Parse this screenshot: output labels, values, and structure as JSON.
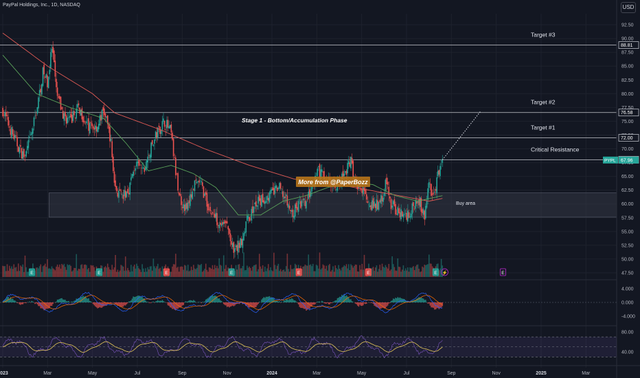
{
  "header": {
    "symbol_title": "PayPal Holdings, Inc., 1D, NASDAQ",
    "currency": "USD"
  },
  "colors": {
    "bg": "#131722",
    "up": "#26a69a",
    "down": "#ef5350",
    "ma_red": "#e05a55",
    "ma_green": "#5aa25a",
    "grid": "#1e222d",
    "text": "#b2b5be",
    "white": "#ffffff"
  },
  "chart_data": {
    "type": "candlestick",
    "price_axis": {
      "ticks": [
        "92.50",
        "90.00",
        "87.50",
        "85.00",
        "82.50",
        "80.00",
        "77.50",
        "75.00",
        "72.50",
        "70.00",
        "67.50",
        "65.00",
        "62.50",
        "60.00",
        "57.50",
        "55.00",
        "52.50",
        "50.00",
        "47.50"
      ],
      "range": [
        46.5,
        94.5
      ]
    },
    "time_axis": {
      "ticks": [
        "2023",
        "Mar",
        "May",
        "Jul",
        "Sep",
        "Nov",
        "2024",
        "Mar",
        "May",
        "Jul",
        "Sep",
        "Nov",
        "2025",
        "Mar"
      ],
      "bold": [
        "2023",
        "2024",
        "2025"
      ],
      "range_months": [
        0,
        27
      ]
    },
    "price_tags": [
      {
        "label": "88.81",
        "value": 88.81
      },
      {
        "label": "76.58",
        "value": 76.58
      },
      {
        "label": "72.00",
        "value": 72.0
      },
      {
        "label": "68.01",
        "value": 68.01
      },
      {
        "label": "67.96",
        "value": 67.96,
        "ticker": "PYPL"
      }
    ],
    "levels": [
      {
        "label": "Target #3",
        "value": 88.81
      },
      {
        "label": "Target #2",
        "value": 76.58
      },
      {
        "label": "Target #1",
        "value": 72.0
      },
      {
        "label": "Critical Resistance",
        "value": 68.01
      }
    ],
    "buy_zone": {
      "label": "Buy area",
      "low": 57.6,
      "high": 62.0,
      "from_month": 2.0,
      "to_month": 27.0
    },
    "annotation_stage": "Stage 1 - Bottom/Accumulation Phase",
    "watermark": "More from @PaperBozz",
    "projection": {
      "from": [
        19.6,
        68.0
      ],
      "to": [
        21.3,
        76.8
      ]
    },
    "price_keypoints": [
      [
        0.0,
        77.0
      ],
      [
        0.4,
        73.0
      ],
      [
        0.8,
        69.5
      ],
      [
        1.0,
        68.5
      ],
      [
        1.3,
        73.0
      ],
      [
        1.6,
        79.0
      ],
      [
        1.8,
        84.0
      ],
      [
        2.0,
        82.0
      ],
      [
        2.2,
        88.5
      ],
      [
        2.4,
        80.0
      ],
      [
        2.7,
        76.0
      ],
      [
        3.0,
        75.0
      ],
      [
        3.4,
        77.5
      ],
      [
        3.8,
        74.0
      ],
      [
        4.2,
        74.0
      ],
      [
        4.5,
        77.0
      ],
      [
        4.8,
        72.0
      ],
      [
        5.0,
        63.0
      ],
      [
        5.3,
        61.0
      ],
      [
        5.6,
        62.5
      ],
      [
        5.9,
        67.0
      ],
      [
        6.3,
        66.0
      ],
      [
        6.6,
        70.0
      ],
      [
        6.9,
        73.0
      ],
      [
        7.2,
        75.0
      ],
      [
        7.5,
        73.0
      ],
      [
        7.7,
        66.0
      ],
      [
        7.9,
        61.0
      ],
      [
        8.2,
        59.0
      ],
      [
        8.5,
        63.0
      ],
      [
        8.8,
        64.0
      ],
      [
        9.2,
        59.0
      ],
      [
        9.6,
        57.0
      ],
      [
        10.0,
        56.0
      ],
      [
        10.3,
        51.0
      ],
      [
        10.6,
        53.0
      ],
      [
        10.9,
        57.0
      ],
      [
        11.3,
        60.0
      ],
      [
        11.7,
        61.0
      ],
      [
        12.0,
        62.0
      ],
      [
        12.3,
        63.0
      ],
      [
        12.6,
        61.0
      ],
      [
        12.9,
        58.0
      ],
      [
        13.2,
        60.0
      ],
      [
        13.5,
        60.0
      ],
      [
        13.8,
        63.0
      ],
      [
        14.1,
        66.0
      ],
      [
        14.5,
        64.0
      ],
      [
        14.8,
        63.0
      ],
      [
        15.2,
        65.0
      ],
      [
        15.5,
        68.0
      ],
      [
        15.8,
        63.0
      ],
      [
        16.1,
        62.0
      ],
      [
        16.5,
        59.5
      ],
      [
        16.8,
        60.0
      ],
      [
        17.1,
        64.0
      ],
      [
        17.3,
        60.0
      ],
      [
        17.6,
        58.5
      ],
      [
        17.9,
        58.0
      ],
      [
        18.2,
        58.5
      ],
      [
        18.5,
        61.5
      ],
      [
        18.8,
        57.5
      ],
      [
        19.0,
        64.0
      ],
      [
        19.2,
        61.0
      ],
      [
        19.4,
        65.0
      ],
      [
        19.6,
        67.96
      ]
    ],
    "ma_slow_keypoints": [
      [
        0.0,
        91.0
      ],
      [
        2.0,
        85.0
      ],
      [
        4.0,
        80.0
      ],
      [
        5.0,
        76.5
      ],
      [
        7.0,
        73.5
      ],
      [
        9.0,
        70.0
      ],
      [
        11.0,
        67.0
      ],
      [
        13.0,
        64.5
      ],
      [
        15.0,
        63.5
      ],
      [
        17.0,
        62.0
      ],
      [
        19.0,
        60.5
      ],
      [
        19.6,
        61.0
      ]
    ],
    "ma_fast_keypoints": [
      [
        0.0,
        87.0
      ],
      [
        1.5,
        80.0
      ],
      [
        3.0,
        77.5
      ],
      [
        4.5,
        75.5
      ],
      [
        5.5,
        71.0
      ],
      [
        6.5,
        66.0
      ],
      [
        7.5,
        67.0
      ],
      [
        8.5,
        65.5
      ],
      [
        9.5,
        63.0
      ],
      [
        10.5,
        58.0
      ],
      [
        11.5,
        58.0
      ],
      [
        12.5,
        60.5
      ],
      [
        13.5,
        61.5
      ],
      [
        14.5,
        63.0
      ],
      [
        15.5,
        64.0
      ],
      [
        16.5,
        63.5
      ],
      [
        17.5,
        61.5
      ],
      [
        18.5,
        60.5
      ],
      [
        19.6,
        61.5
      ]
    ],
    "earnings_markers": [
      {
        "month": 1.3,
        "label": "E",
        "type": "up"
      },
      {
        "month": 4.3,
        "label": "E",
        "type": "up"
      },
      {
        "month": 7.3,
        "label": "E",
        "type": "down"
      },
      {
        "month": 10.2,
        "label": "E",
        "type": "up"
      },
      {
        "month": 13.2,
        "label": "E",
        "type": "down"
      },
      {
        "month": 16.3,
        "label": "E",
        "type": "down"
      },
      {
        "month": 19.3,
        "label": "E",
        "type": "up"
      },
      {
        "month": 19.7,
        "label": "⚡",
        "type": "split"
      },
      {
        "month": 22.3,
        "label": "E",
        "type": "future"
      }
    ],
    "macd_axis": {
      "ticks": [
        "4.000",
        "0.000",
        "-4.000"
      ],
      "range": [
        -6,
        6
      ]
    },
    "rsi_axis": {
      "ticks": [
        "80.00",
        "40.00"
      ],
      "range": [
        25,
        88
      ]
    }
  }
}
